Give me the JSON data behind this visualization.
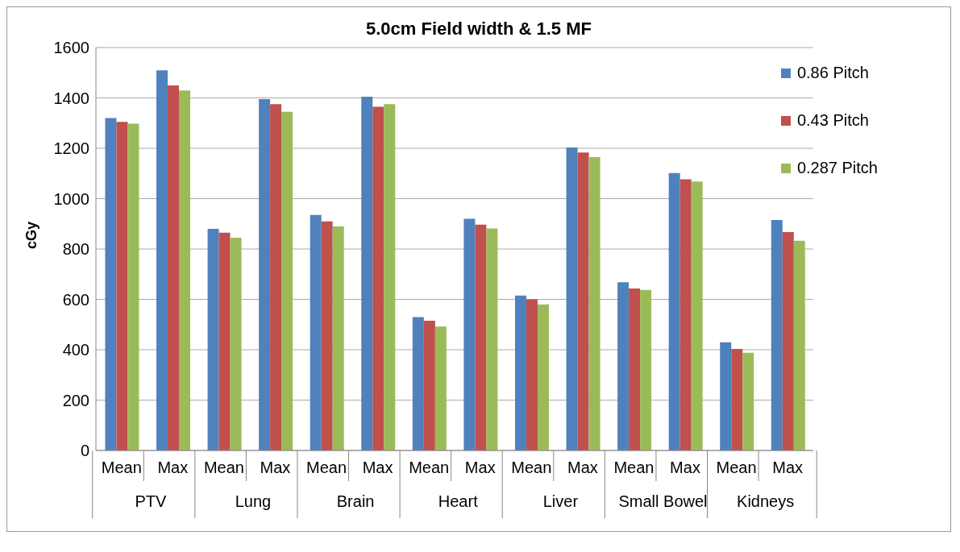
{
  "chart_data": {
    "type": "bar",
    "title": "5.0cm Field width & 1.5 MF",
    "ylabel": "cGy",
    "categories": [
      "Mean",
      "Max",
      "Mean",
      "Max",
      "Mean",
      "Max",
      "Mean",
      "Max",
      "Mean",
      "Max",
      "Mean",
      "Max",
      "Mean",
      "Max"
    ],
    "annotations": [
      "PTV",
      "Lung",
      "Brain",
      "Heart",
      "Liver",
      "Small Bowel",
      "Kidneys"
    ],
    "series": [
      {
        "name": "0.86 Pitch",
        "color": "#4f81bd",
        "values": [
          1320,
          1510,
          880,
          1395,
          935,
          1405,
          530,
          920,
          615,
          1203,
          668,
          1102,
          430,
          915
        ]
      },
      {
        "name": "0.43 Pitch",
        "color": "#c0504d",
        "values": [
          1305,
          1450,
          865,
          1375,
          910,
          1365,
          515,
          897,
          600,
          1183,
          643,
          1077,
          403,
          867
        ]
      },
      {
        "name": "0.287 Pitch",
        "color": "#9bbb59",
        "values": [
          1298,
          1430,
          845,
          1345,
          890,
          1375,
          492,
          882,
          580,
          1165,
          638,
          1068,
          388,
          833
        ]
      }
    ],
    "ylim": [
      0,
      1600
    ],
    "yticks": [
      0,
      200,
      400,
      600,
      800,
      1000,
      1200,
      1400,
      1600
    ],
    "grid": "y",
    "legend": "top right"
  }
}
